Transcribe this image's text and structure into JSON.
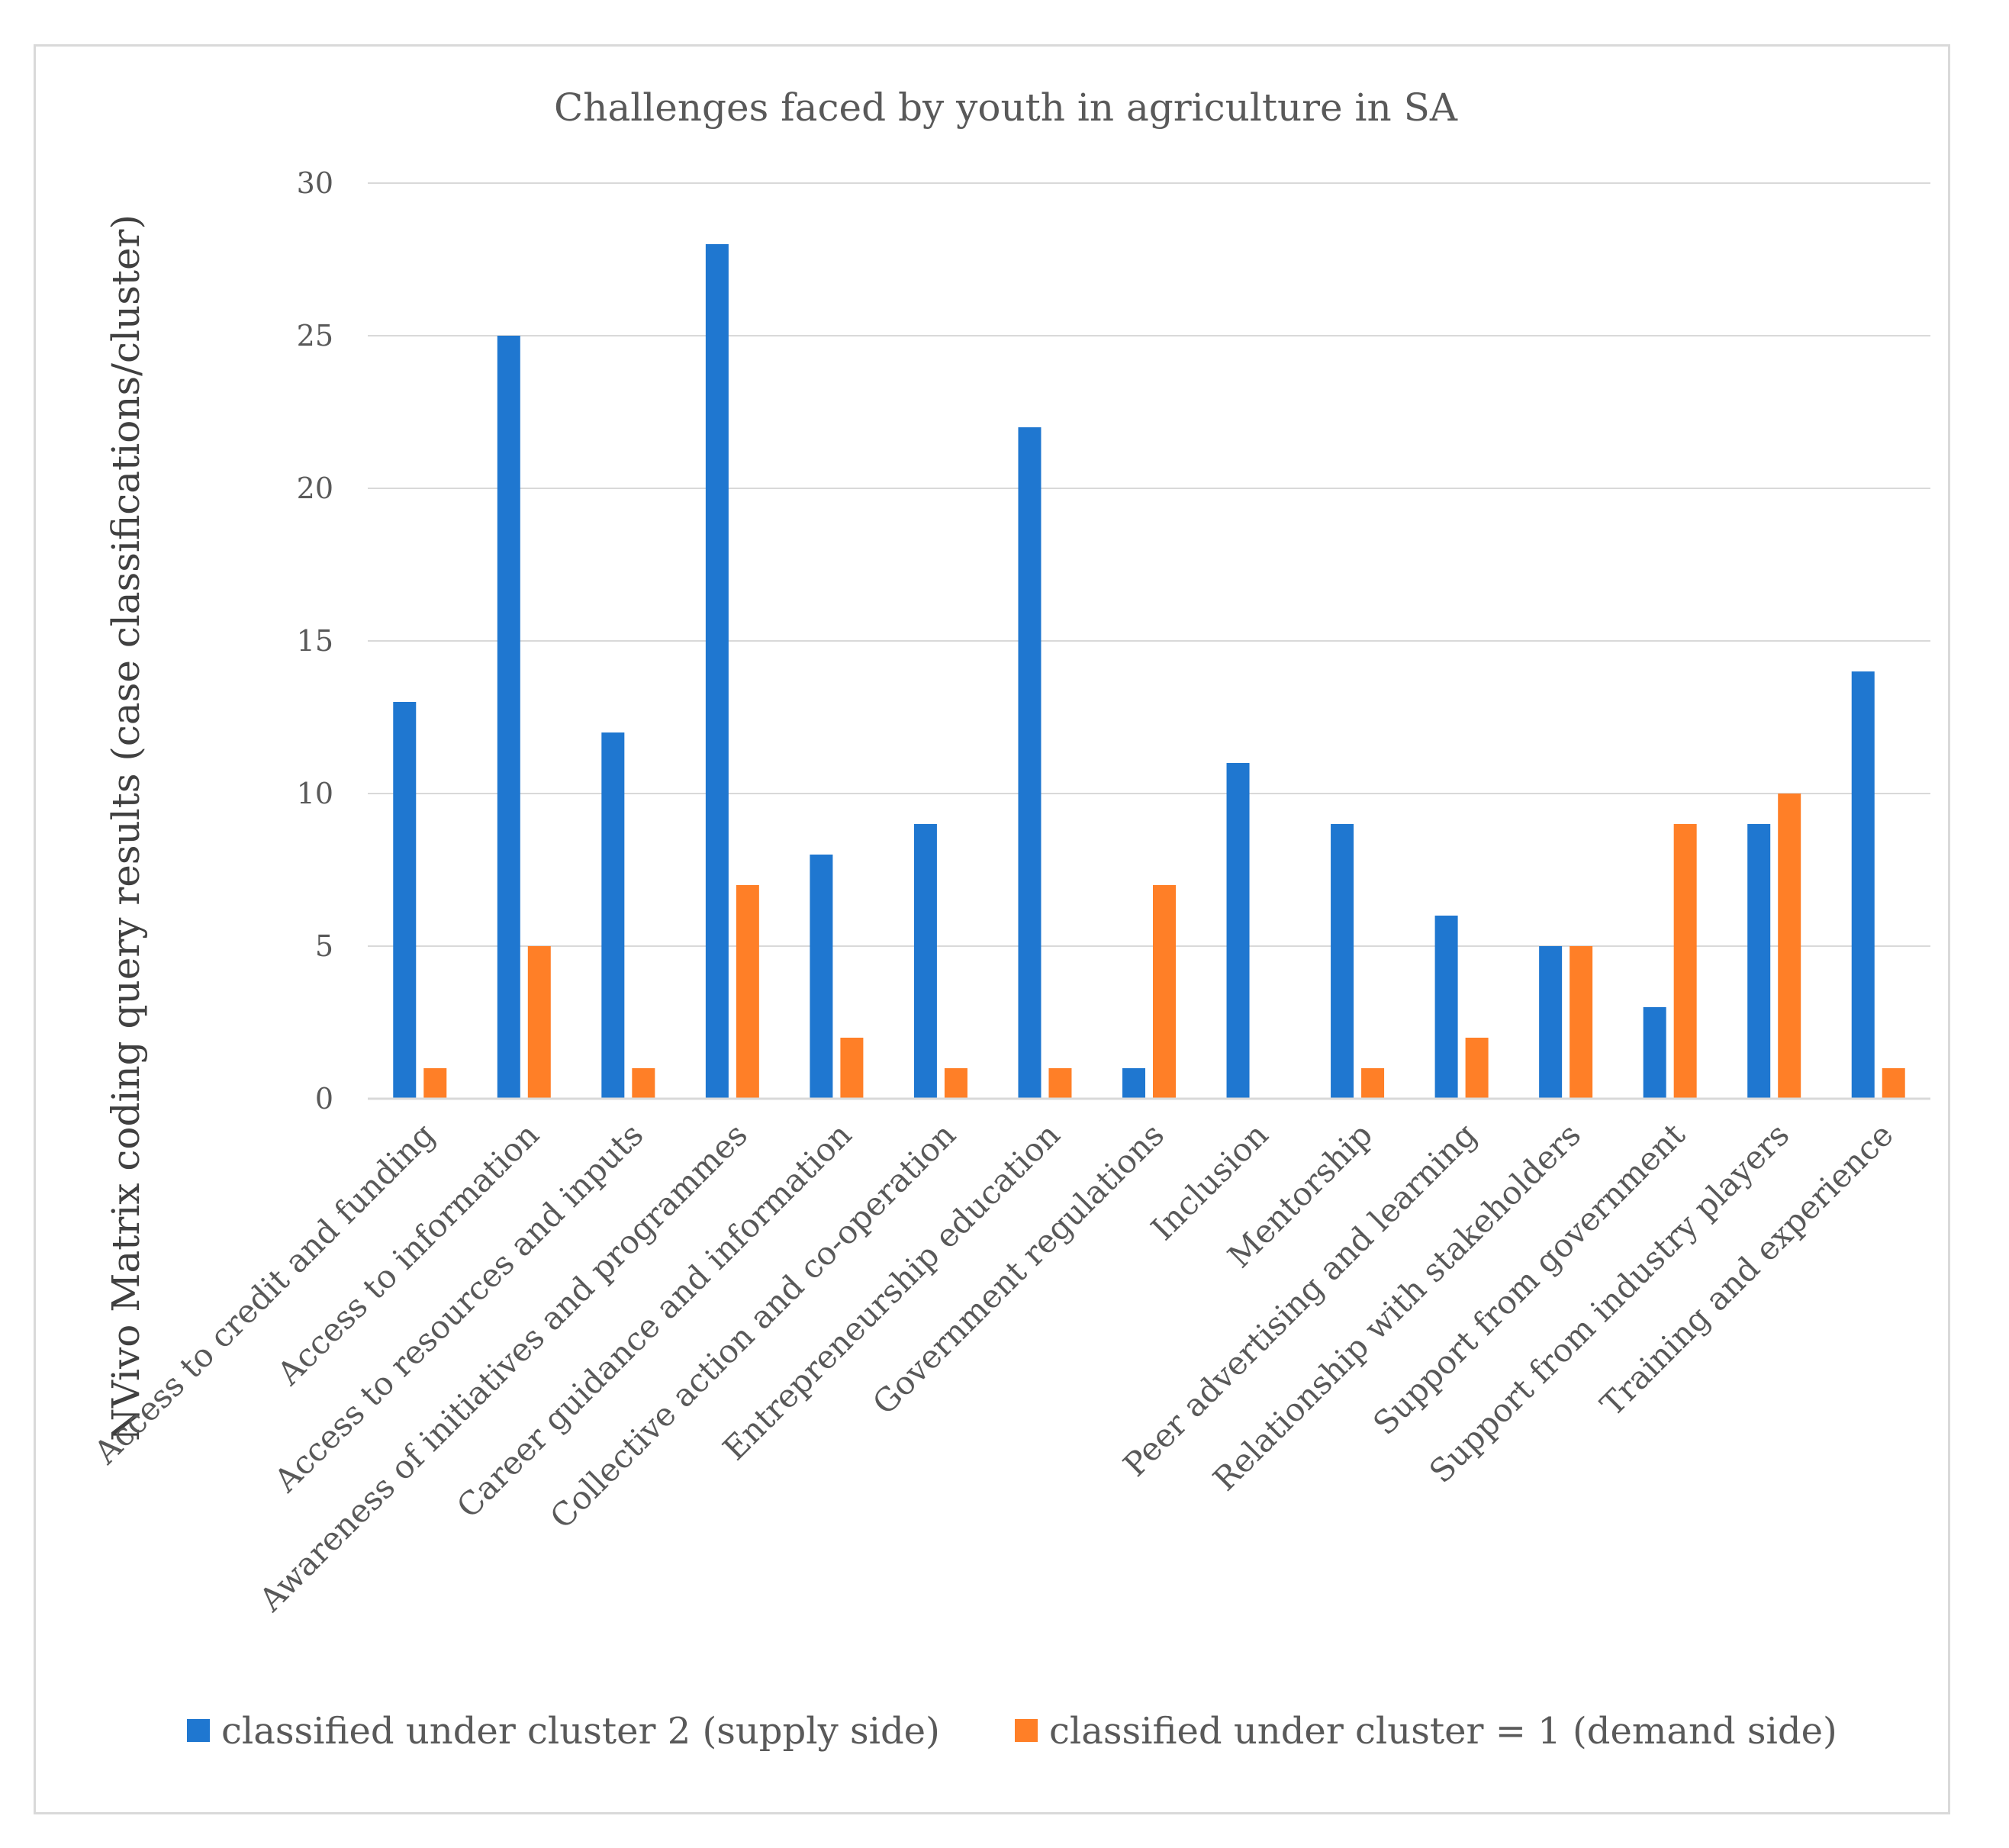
{
  "chart_data": {
    "type": "bar",
    "title": "Challenges faced by youth in agriculture in SA",
    "xlabel": "",
    "ylabel": "NVivo Matrix coding query results (case classifications/cluster)",
    "ylim": [
      0,
      30
    ],
    "yticks": [
      0,
      5,
      10,
      15,
      20,
      25,
      30
    ],
    "grid": true,
    "legend_position": "bottom",
    "categories": [
      "Access to credit and funding",
      "Access to information",
      "Access to resources and inputs",
      "Awareness of initiatives and programmes",
      "Career guidance and information",
      "Collective action and co-operation",
      "Entrepreneurship education",
      "Government regulations",
      "Inclusion",
      "Mentorship",
      "Peer advertising and learning",
      "Relationship with stakeholders",
      "Support from government",
      "Support from industry players",
      "Training and experience"
    ],
    "series": [
      {
        "name": "classified under cluster 2 (supply side)",
        "color": "#1f77d0",
        "values": [
          13,
          25,
          12,
          28,
          8,
          9,
          22,
          1,
          11,
          9,
          6,
          5,
          3,
          9,
          14
        ]
      },
      {
        "name": "classified under cluster = 1 (demand side)",
        "color": "#ff7f27",
        "values": [
          1,
          5,
          1,
          7,
          2,
          1,
          1,
          7,
          0,
          1,
          2,
          5,
          9,
          10,
          1
        ]
      }
    ]
  }
}
